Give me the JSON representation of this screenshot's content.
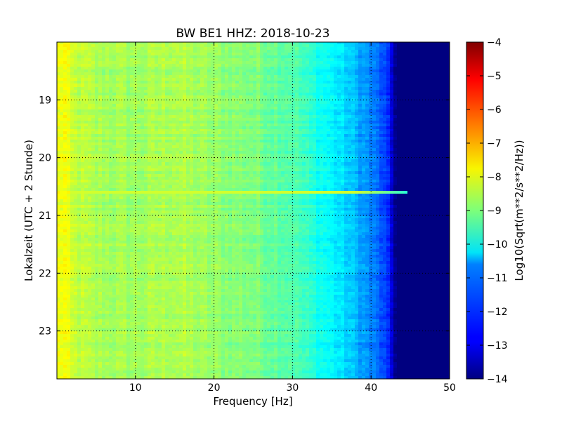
{
  "chart_data": {
    "type": "heatmap",
    "title": "BW BE1 HHZ: 2018-10-23",
    "xlabel": "Frequency [Hz]",
    "ylabel": "Lokalzeit (UTC + 2 Stunde)",
    "xlim": [
      0,
      50
    ],
    "ylim": [
      18.0,
      23.83
    ],
    "y_axis_inverted": true,
    "x_ticks": [
      "10",
      "20",
      "30",
      "40",
      "50"
    ],
    "y_ticks": [
      "19",
      "20",
      "21",
      "22",
      "23"
    ],
    "grid": true,
    "colormap": "jet",
    "colorbar": {
      "label": "Log10(Sqrt(m**2/s**2/Hz))",
      "range": [
        -14,
        -4
      ],
      "ticks": [
        "-4",
        "-5",
        "-6",
        "-7",
        "-8",
        "-9",
        "-10",
        "-11",
        "-12",
        "-13",
        "-14"
      ]
    },
    "spectrum_profile": {
      "frequency_hz": [
        0,
        1,
        2,
        5,
        10,
        15,
        20,
        25,
        30,
        33,
        35,
        37,
        39,
        41,
        43,
        44,
        50
      ],
      "log10_amplitude": [
        -8.0,
        -7.8,
        -8.3,
        -8.6,
        -8.7,
        -8.5,
        -8.8,
        -9.0,
        -9.4,
        -10.0,
        -10.3,
        -10.7,
        -11.2,
        -11.8,
        -12.8,
        -14.0,
        -14.0
      ]
    },
    "notable_rows": [
      {
        "time": 20.6,
        "description": "elevated amplitude band",
        "log10_amplitude": -8.2,
        "extends_to_hz": 45
      }
    ]
  }
}
